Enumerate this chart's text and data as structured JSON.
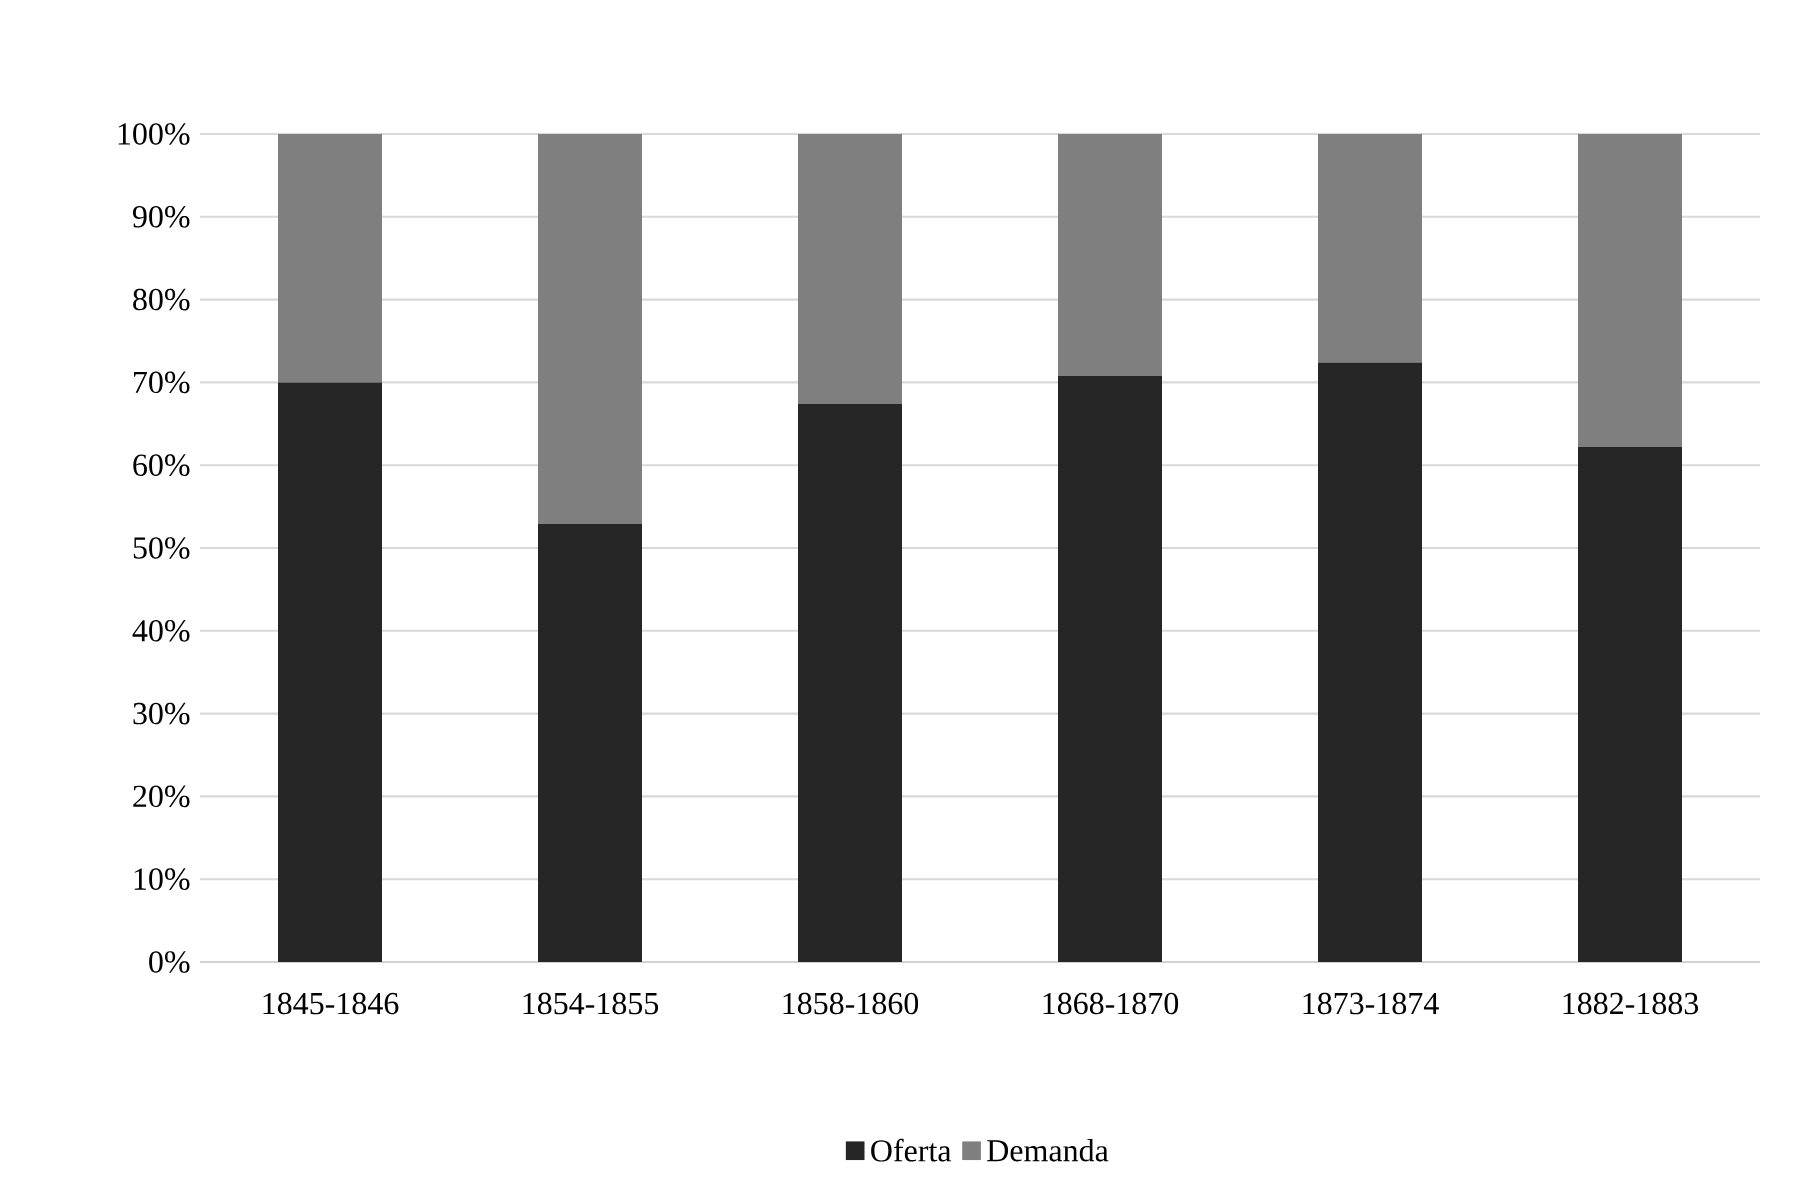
{
  "chart_data": {
    "type": "bar",
    "stacked": true,
    "categories": [
      "1845-1846",
      "1854-1855",
      "1858-1860",
      "1868-1870",
      "1873-1874",
      "1882-1883"
    ],
    "series": [
      {
        "name": "Oferta",
        "color": "#262626",
        "values": [
          70.0,
          52.9,
          67.4,
          70.8,
          72.4,
          62.2
        ]
      },
      {
        "name": "Demanda",
        "color": "#7f7f7f",
        "values": [
          30.0,
          47.1,
          32.6,
          29.2,
          27.6,
          37.8
        ]
      }
    ],
    "ylim": [
      0,
      100
    ],
    "yticks": [
      {
        "value": 0,
        "label": "0%"
      },
      {
        "value": 10,
        "label": "10%"
      },
      {
        "value": 20,
        "label": "20%"
      },
      {
        "value": 30,
        "label": "30%"
      },
      {
        "value": 40,
        "label": "40%"
      },
      {
        "value": 50,
        "label": "50%"
      },
      {
        "value": 60,
        "label": "60%"
      },
      {
        "value": 70,
        "label": "70%"
      },
      {
        "value": 80,
        "label": "80%"
      },
      {
        "value": 90,
        "label": "90%"
      },
      {
        "value": 100,
        "label": "100%"
      }
    ],
    "grid": "y",
    "legend": "bottom"
  }
}
